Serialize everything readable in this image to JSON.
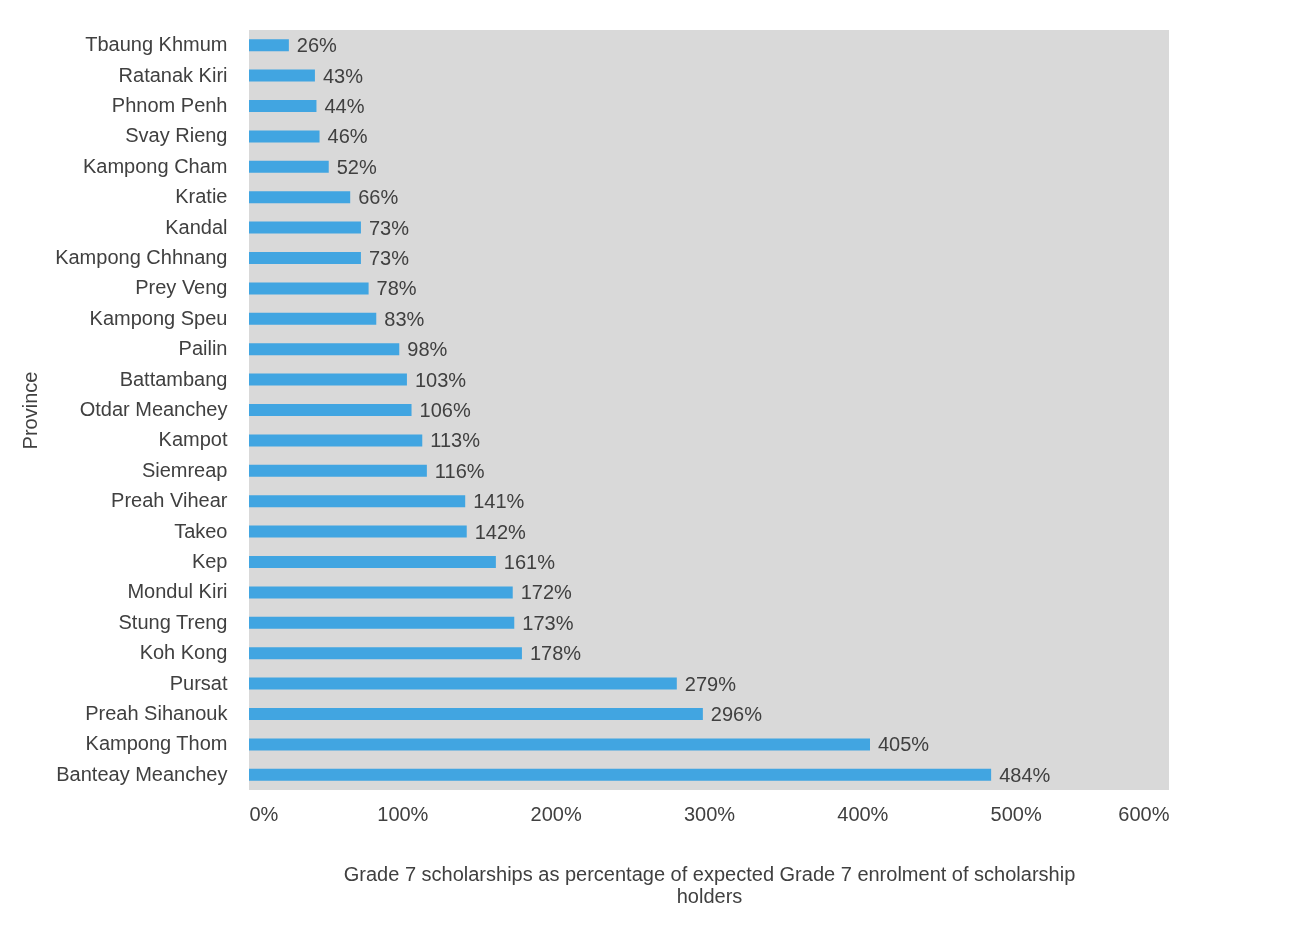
{
  "chart_data": {
    "type": "bar",
    "orientation": "horizontal",
    "categories": [
      "Tbaung Khmum",
      "Ratanak Kiri",
      "Phnom Penh",
      "Svay Rieng",
      "Kampong Cham",
      "Kratie",
      "Kandal",
      "Kampong Chhnang",
      "Prey Veng",
      "Kampong Speu",
      "Pailin",
      "Battambang",
      "Otdar Meanchey",
      "Kampot",
      "Siemreap",
      "Preah Vihear",
      "Takeo",
      "Kep",
      "Mondul Kiri",
      "Stung Treng",
      "Koh Kong",
      "Pursat",
      "Preah Sihanouk",
      "Kampong Thom",
      "Banteay Meanchey"
    ],
    "values": [
      26,
      43,
      44,
      46,
      52,
      66,
      73,
      73,
      78,
      83,
      98,
      103,
      106,
      113,
      116,
      141,
      142,
      161,
      172,
      173,
      178,
      279,
      296,
      405,
      484
    ],
    "value_labels": [
      "26%",
      "43%",
      "44%",
      "46%",
      "52%",
      "66%",
      "73%",
      "73%",
      "78%",
      "83%",
      "98%",
      "103%",
      "106%",
      "113%",
      "116%",
      "141%",
      "142%",
      "161%",
      "172%",
      "173%",
      "178%",
      "279%",
      "296%",
      "405%",
      "484%"
    ],
    "color": "#41a5e1",
    "xlim": [
      0,
      600
    ],
    "xticks": [
      {
        "value": 0,
        "label": "0%"
      },
      {
        "value": 100,
        "label": "100%"
      },
      {
        "value": 200,
        "label": "200%"
      },
      {
        "value": 300,
        "label": "300%"
      },
      {
        "value": 400,
        "label": "400%"
      },
      {
        "value": 500,
        "label": "500%"
      },
      {
        "value": 600,
        "label": "600%"
      }
    ],
    "xlabel": "Grade 7 scholarships as percentage of expected Grade 7 enrolment of scholarship holders",
    "ylabel": "Province",
    "grid": false
  }
}
